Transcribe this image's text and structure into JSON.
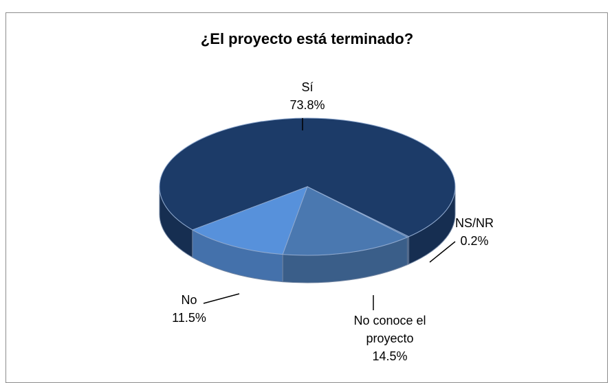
{
  "chart_data": {
    "type": "pie",
    "title": "¿El proyecto está terminado?",
    "categories": [
      "Sí",
      "NS/NR",
      "No conoce el proyecto",
      "No"
    ],
    "values": [
      73.8,
      0.2,
      14.5,
      11.5
    ],
    "value_labels": [
      "73.8%",
      "0.2%",
      "14.5%",
      "11.5%"
    ],
    "colors": [
      "#1c3b68",
      "#2d5386",
      "#4a78b0",
      "#5791db"
    ]
  }
}
